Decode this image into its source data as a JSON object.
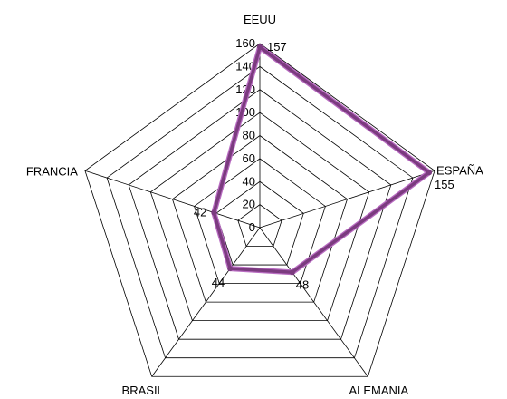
{
  "chart_data": {
    "type": "radar",
    "categories": [
      "EEUU",
      "ESPAÑA",
      "ALEMANIA",
      "BRASIL",
      "FRANCIA"
    ],
    "series": [
      {
        "values": [
          157,
          155,
          48,
          44,
          42
        ]
      }
    ],
    "data_labels": [
      "157",
      "155",
      "48",
      "44",
      "42"
    ],
    "r_ticks": [
      "0",
      "20",
      "40",
      "60",
      "80",
      "100",
      "120",
      "140",
      "160"
    ],
    "rlim": [
      0,
      160
    ],
    "grid": true,
    "legend": "none",
    "colors": {
      "series": "#7b3b7f",
      "series_edge": "#b86bc1",
      "grid": "#000000"
    }
  }
}
